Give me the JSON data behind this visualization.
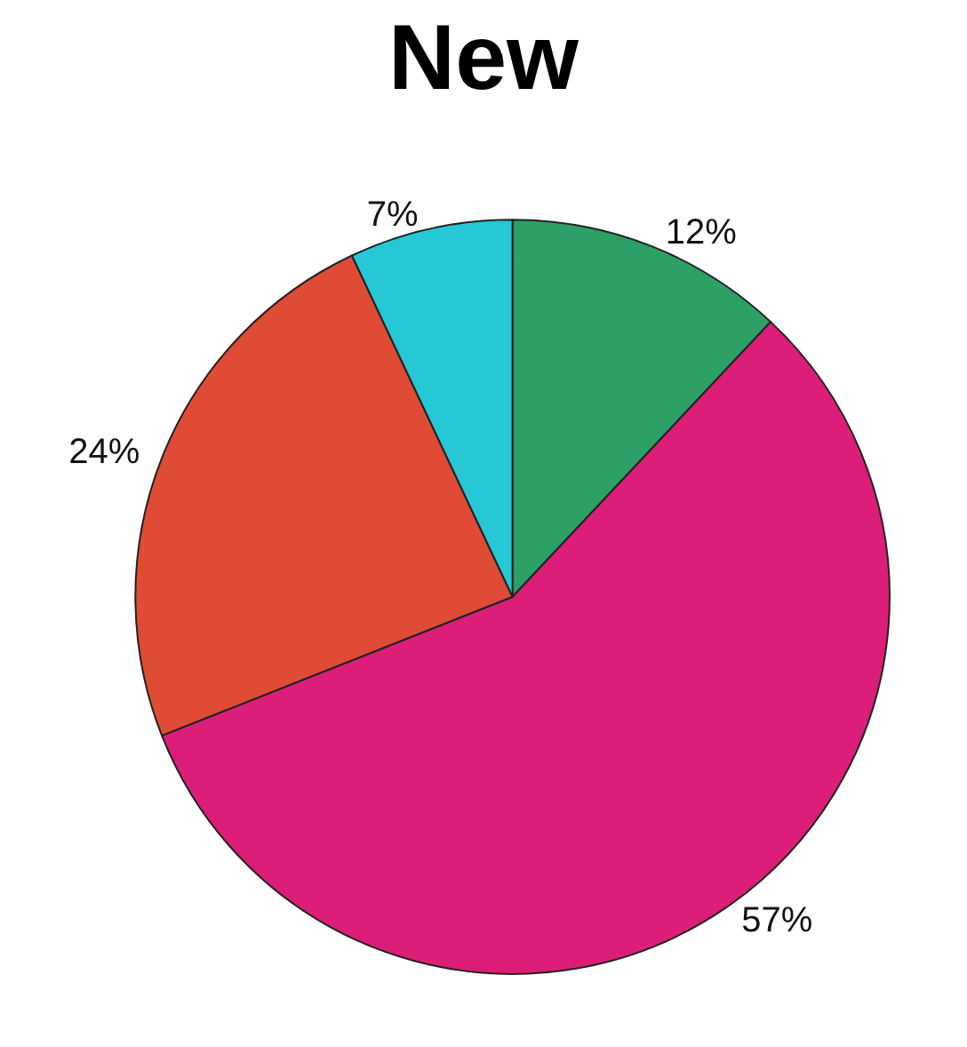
{
  "chart_data": {
    "type": "pie",
    "title": "New",
    "categories": [
      null,
      null,
      null,
      null
    ],
    "values": [
      12,
      57,
      24,
      7
    ],
    "colors": [
      "#2ca065",
      "#dc1e78",
      "#e04b35",
      "#26c8d6"
    ],
    "value_labels": [
      "12%",
      "57%",
      "24%",
      "7%"
    ]
  }
}
